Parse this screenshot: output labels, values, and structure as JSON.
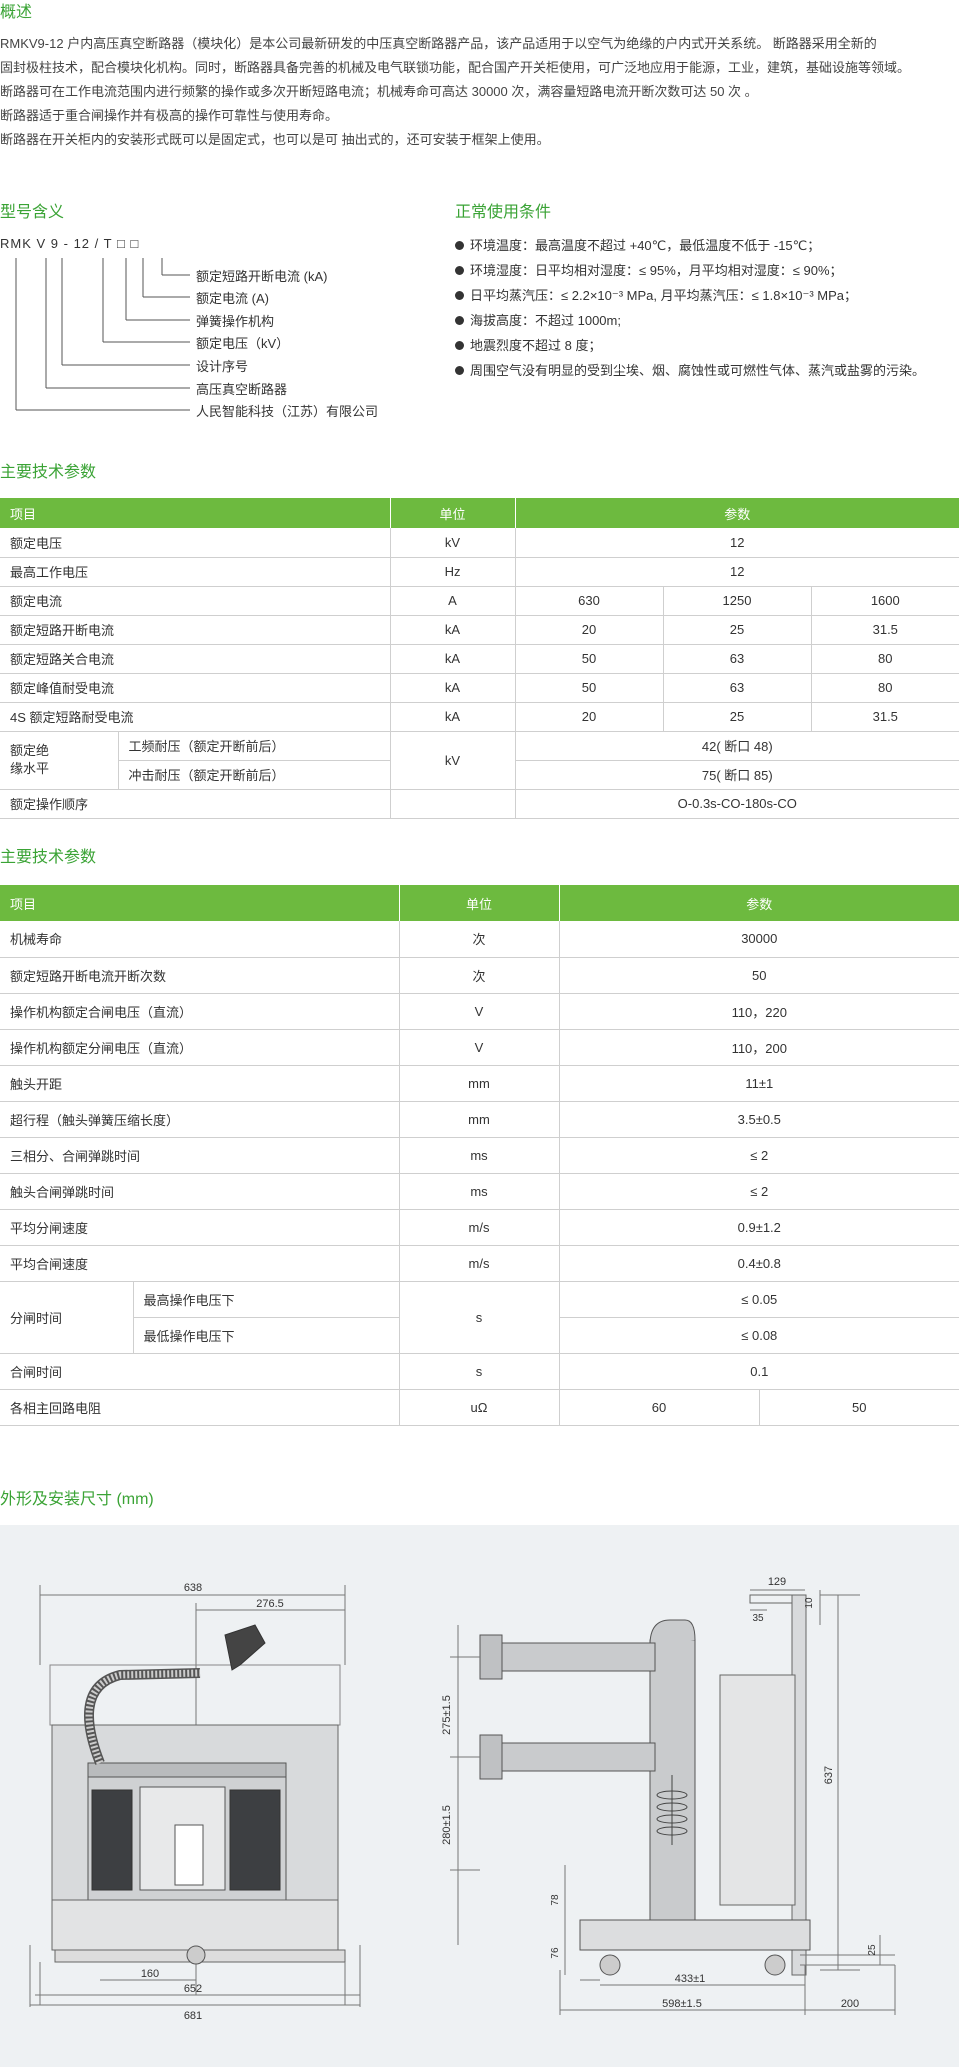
{
  "overview": {
    "title": "概述",
    "paragraphs": [
      "RMKV9-12 户内高压真空断路器（模块化）是本公司最新研发的中压真空断路器产品，该产品适用于以空气为绝缘的户内式开关系统。 断路器采用全新的",
      "固封极柱技术，配合模块化机构。同时，断路器具备完善的机械及电气联锁功能，配合国产开关柜使用，可广泛地应用于能源，工业，建筑，基础设施等领域。",
      "断路器可在工作电流范围内进行频繁的操作或多次开断短路电流；机械寿命可高达 30000 次，满容量短路电流开断次数可达 50 次 。",
      "断路器适于重合闸操作并有极高的操作可靠性与使用寿命。",
      "断路器在开关柜内的安装形式既可以是固定式，也可以是可 抽出式的，还可安装于框架上使用。"
    ]
  },
  "model_meaning": {
    "title": "型号含义",
    "code": "RMK V 9 - 12 / T □ □",
    "labels": [
      "额定短路开断电流 (kA)",
      "额定电流 (A)",
      "弹簧操作机构",
      "额定电压（kV）",
      "设计序号",
      "高压真空断路器",
      "人民智能科技（江苏）有限公司"
    ]
  },
  "conditions": {
    "title": "正常使用条件",
    "items": [
      "环境温度：最高温度不超过 +40℃，最低温度不低于 -15℃；",
      "环境湿度：日平均相对湿度：≤ 95%，月平均相对湿度：≤ 90%；",
      "日平均蒸汽压：≤ 2.2×10⁻³ MPa, 月平均蒸汽压：≤ 1.8×10⁻³ MPa；",
      "海拔高度：不超过 1000m;",
      "地震烈度不超过 8 度；",
      "周围空气没有明显的受到尘埃、烟、腐蚀性或可燃性气体、蒸汽或盐雾的污染。"
    ]
  },
  "table1": {
    "title": "主要技术参数",
    "headers": [
      "项目",
      "单位",
      "参数"
    ],
    "rows": [
      [
        "额定电压",
        "kV",
        "12"
      ],
      [
        "最高工作电压",
        "Hz",
        "12"
      ],
      [
        "额定电流",
        "A",
        "630",
        "1250",
        "1600"
      ],
      [
        "额定短路开断电流",
        "kA",
        "20",
        "25",
        "31.5"
      ],
      [
        "额定短路关合电流",
        "kA",
        "50",
        "63",
        "80"
      ],
      [
        "额定峰值耐受电流",
        "kA",
        "50",
        "63",
        "80"
      ],
      [
        "4S 额定短路耐受电流",
        "kA",
        "20",
        "25",
        "31.5"
      ]
    ],
    "insulation": {
      "label_line1": "额定绝",
      "label_line2": "缘水平",
      "unit": "kV",
      "sub": [
        [
          "工频耐压（额定开断前后）",
          "42( 断口 48)"
        ],
        [
          "冲击耐压（额定开断前后）",
          "75( 断口 85)"
        ]
      ]
    },
    "last": [
      "额定操作顺序",
      "O-0.3s-CO-180s-CO"
    ]
  },
  "table2": {
    "title": "主要技术参数",
    "headers": [
      "项目",
      "单位",
      "参数"
    ],
    "rows": [
      [
        "机械寿命",
        "次",
        "30000"
      ],
      [
        "额定短路开断电流开断次数",
        "次",
        "50"
      ],
      [
        "操作机构额定合闸电压（直流）",
        "V",
        "110，220"
      ],
      [
        "操作机构额定分闸电压（直流）",
        "V",
        "110，200"
      ],
      [
        "触头开距",
        "mm",
        "11±1"
      ],
      [
        "超行程（触头弹簧压缩长度）",
        "mm",
        "3.5±0.5"
      ],
      [
        "三相分、合闸弹跳时间",
        "ms",
        "≤ 2"
      ],
      [
        "触头合闸弹跳时间",
        "ms",
        "≤ 2"
      ],
      [
        "平均分闸速度",
        "m/s",
        "0.9±1.2"
      ],
      [
        "平均合闸速度",
        "m/s",
        "0.4±0.8"
      ]
    ],
    "open_time": {
      "label": "分闸时间",
      "unit": "s",
      "sub": [
        [
          "最高操作电压下",
          "≤ 0.05"
        ],
        [
          "最低操作电压下",
          "≤ 0.08"
        ]
      ]
    },
    "close_time": [
      "合闸时间",
      "s",
      "0.1"
    ],
    "resistance": [
      "各相主回路电阻",
      "uΩ",
      "60",
      "50"
    ]
  },
  "drawing": {
    "title": "外形及安装尺寸 (mm)",
    "front_dims": [
      "638",
      "276.5",
      "160",
      "652",
      "681"
    ],
    "side_dims": [
      "129",
      "35",
      "10",
      "275±1.5",
      "637",
      "280±1.5",
      "78",
      "76",
      "25",
      "433±1",
      "598±1.5",
      "200"
    ]
  }
}
